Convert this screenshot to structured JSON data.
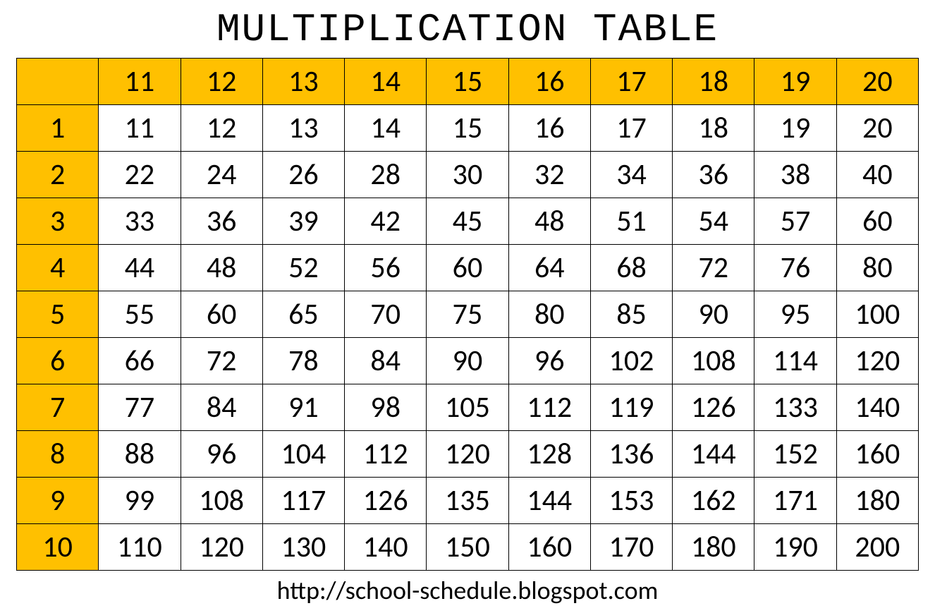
{
  "title": "MULTIPLICATION TABLE",
  "footer": "http://school-schedule.blogspot.com",
  "table": {
    "type": "table",
    "header_bg_color": "#ffc000",
    "cell_bg_color": "#ffffff",
    "border_color": "#000000",
    "text_color": "#000000",
    "title_font_family": "Courier New",
    "title_fontsize": 56,
    "cell_fontsize": 42,
    "footer_fontsize": 36,
    "col_headers": [
      "11",
      "12",
      "13",
      "14",
      "15",
      "16",
      "17",
      "18",
      "19",
      "20"
    ],
    "row_headers": [
      "1",
      "2",
      "3",
      "4",
      "5",
      "6",
      "7",
      "8",
      "9",
      "10"
    ],
    "rows": [
      [
        "11",
        "12",
        "13",
        "14",
        "15",
        "16",
        "17",
        "18",
        "19",
        "20"
      ],
      [
        "22",
        "24",
        "26",
        "28",
        "30",
        "32",
        "34",
        "36",
        "38",
        "40"
      ],
      [
        "33",
        "36",
        "39",
        "42",
        "45",
        "48",
        "51",
        "54",
        "57",
        "60"
      ],
      [
        "44",
        "48",
        "52",
        "56",
        "60",
        "64",
        "68",
        "72",
        "76",
        "80"
      ],
      [
        "55",
        "60",
        "65",
        "70",
        "75",
        "80",
        "85",
        "90",
        "95",
        "100"
      ],
      [
        "66",
        "72",
        "78",
        "84",
        "90",
        "96",
        "102",
        "108",
        "114",
        "120"
      ],
      [
        "77",
        "84",
        "91",
        "98",
        "105",
        "112",
        "119",
        "126",
        "133",
        "140"
      ],
      [
        "88",
        "96",
        "104",
        "112",
        "120",
        "128",
        "136",
        "144",
        "152",
        "160"
      ],
      [
        "99",
        "108",
        "117",
        "126",
        "135",
        "144",
        "153",
        "162",
        "171",
        "180"
      ],
      [
        "110",
        "120",
        "130",
        "140",
        "150",
        "160",
        "170",
        "180",
        "190",
        "200"
      ]
    ]
  }
}
